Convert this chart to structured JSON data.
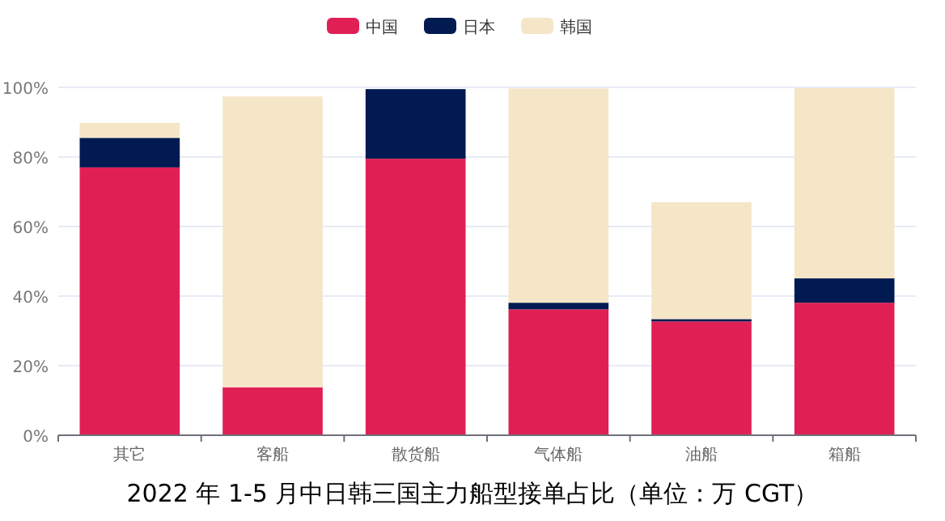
{
  "chart_data": {
    "type": "bar",
    "title": "2022 年 1-5 月中日韩三国主力船型接单占比（单位：万 CGT）",
    "categories": [
      "其它",
      "客船",
      "散货船",
      "气体船",
      "油船",
      "箱船"
    ],
    "stacked": true,
    "grid": "y",
    "legend": "top",
    "ylim": [
      0,
      100
    ],
    "yticks": [
      {
        "value": 0,
        "label": "0%"
      },
      {
        "value": 20,
        "label": "20%"
      },
      {
        "value": 40,
        "label": "40%"
      },
      {
        "value": 60,
        "label": "60%"
      },
      {
        "value": 80,
        "label": "80%"
      },
      {
        "value": 100,
        "label": "100%"
      }
    ],
    "series": [
      {
        "name": "中国",
        "color": "#e02055",
        "values": [
          77,
          13.8,
          79.5,
          36.2,
          32.7,
          38.1
        ]
      },
      {
        "name": "日本",
        "color": "#011a52",
        "values": [
          8.5,
          0,
          20,
          1.9,
          0.7,
          7
        ]
      },
      {
        "name": "韩国",
        "color": "#f5e6c8",
        "values": [
          4.3,
          83.6,
          0,
          61.6,
          33.6,
          54.7
        ]
      }
    ]
  }
}
